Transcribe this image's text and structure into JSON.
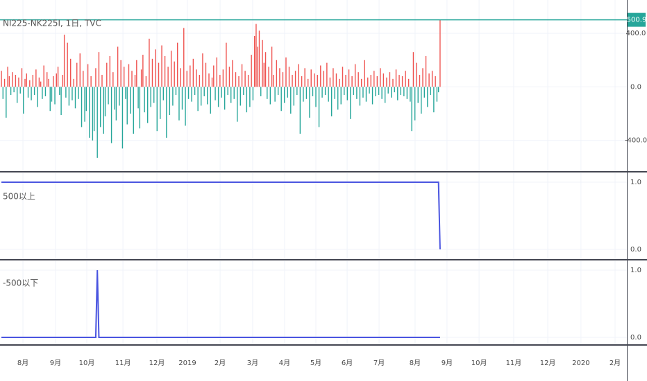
{
  "chart_data": [
    {
      "type": "bar",
      "title": "NI225-NK225I, 1日, TVC",
      "up_color": "#ef5350",
      "down_color": "#26a69a",
      "price_line": true,
      "values": [
        120,
        -90,
        60,
        -230,
        150,
        80,
        -60,
        110,
        -40,
        90,
        -120,
        70,
        -50,
        140,
        -200,
        60,
        100,
        -80,
        50,
        -100,
        90,
        -60,
        130,
        -150,
        70,
        40,
        -90,
        160,
        -70,
        110,
        60,
        -180,
        -110,
        80,
        -130,
        100,
        150,
        -60,
        -210,
        90,
        390,
        -80,
        330,
        -140,
        210,
        -100,
        60,
        -160,
        180,
        -90,
        250,
        -300,
        120,
        -260,
        -180,
        170,
        -380,
        80,
        -400,
        -330,
        140,
        -530,
        260,
        -300,
        90,
        -350,
        -220,
        180,
        -130,
        230,
        -420,
        110,
        -170,
        -250,
        300,
        -140,
        200,
        -460,
        150,
        -90,
        -280,
        170,
        -200,
        120,
        -350,
        90,
        200,
        -160,
        -310,
        130,
        240,
        -190,
        80,
        -270,
        360,
        -150,
        210,
        -120,
        280,
        -330,
        180,
        -240,
        310,
        -100,
        230,
        -380,
        150,
        -210,
        270,
        -140,
        190,
        -60,
        330,
        -250,
        140,
        -170,
        440,
        -290,
        120,
        -90,
        160,
        -110,
        210,
        -60,
        130,
        -180,
        90,
        -140,
        250,
        -70,
        180,
        -130,
        100,
        -200,
        70,
        160,
        -100,
        220,
        -150,
        90,
        -80,
        130,
        -170,
        330,
        -60,
        150,
        -120,
        200,
        -90,
        110,
        -260,
        80,
        -140,
        170,
        -60,
        120,
        -190,
        90,
        -150,
        240,
        -100,
        380,
        470,
        300,
        420,
        -70,
        350,
        180,
        260,
        -90,
        150,
        -130,
        300,
        90,
        -110,
        200,
        -60,
        140,
        -180,
        110,
        -120,
        220,
        -80,
        150,
        -200,
        90,
        -140,
        120,
        -60,
        170,
        -350,
        80,
        -110,
        140,
        -90,
        60,
        -230,
        130,
        -70,
        100,
        -150,
        90,
        -300,
        160,
        -80,
        120,
        -60,
        180,
        -110,
        70,
        -220,
        140,
        -90,
        100,
        -170,
        60,
        -130,
        150,
        -60,
        90,
        -100,
        130,
        -240,
        80,
        -60,
        170,
        -90,
        110,
        -140,
        60,
        -80,
        200,
        -110,
        70,
        -50,
        90,
        -130,
        120,
        -70,
        80,
        -60,
        140,
        -90,
        100,
        -120,
        70,
        -50,
        110,
        -80,
        60,
        -40,
        130,
        -100,
        90,
        -60,
        80,
        -70,
        120,
        -90,
        60,
        -110,
        -330,
        260,
        -250,
        180,
        -120,
        90,
        -200,
        140,
        -80,
        230,
        -150,
        100,
        -60,
        120,
        -190,
        80,
        -110,
        -40,
        500.9
      ],
      "xlim": [
        -0.9,
        397.8
      ],
      "ylim": [
        -629,
        649
      ],
      "yticks": [
        {
          "value": 400,
          "label": "400.0"
        },
        {
          "value": 0,
          "label": "0.0"
        },
        {
          "value": -400,
          "label": "-400.0"
        }
      ]
    },
    {
      "type": "line",
      "title": "500以上",
      "color": "#4a55e0",
      "x": [
        0,
        278,
        279
      ],
      "values": [
        1,
        1,
        0
      ],
      "xlim": [
        -0.9,
        397.8
      ],
      "ylim": [
        -0.134,
        1.134
      ],
      "yticks": [
        {
          "value": 1,
          "label": "1.0"
        },
        {
          "value": 0,
          "label": "0.0"
        }
      ]
    },
    {
      "type": "line",
      "title": "-500以下",
      "color": "#4a55e0",
      "x": [
        0,
        60,
        61,
        62,
        279
      ],
      "values": [
        0,
        0,
        1,
        0,
        0
      ],
      "xlim": [
        -0.9,
        397.8
      ],
      "ylim": [
        -0.103,
        1.134
      ],
      "yticks": [
        {
          "value": 1,
          "label": "1.0"
        },
        {
          "value": 0,
          "label": "0.0"
        }
      ],
      "xticks": [
        {
          "value": 13.7,
          "label": "8月"
        },
        {
          "value": 34.4,
          "label": "9月"
        },
        {
          "value": 54.3,
          "label": "10月"
        },
        {
          "value": 77.3,
          "label": "11月"
        },
        {
          "value": 98.9,
          "label": "12月"
        },
        {
          "value": 118.3,
          "label": "2019"
        },
        {
          "value": 139.1,
          "label": "2月"
        },
        {
          "value": 159.8,
          "label": "3月"
        },
        {
          "value": 180.1,
          "label": "4月"
        },
        {
          "value": 200,
          "label": "5月"
        },
        {
          "value": 219.9,
          "label": "6月"
        },
        {
          "value": 240.2,
          "label": "7月"
        },
        {
          "value": 263.1,
          "label": "8月"
        },
        {
          "value": 283.4,
          "label": "9月"
        },
        {
          "value": 303.8,
          "label": "10月"
        },
        {
          "value": 325.8,
          "label": "11月"
        },
        {
          "value": 347.5,
          "label": "12月"
        },
        {
          "value": 368.6,
          "label": "2020"
        },
        {
          "value": 390.3,
          "label": "2月"
        }
      ]
    }
  ]
}
